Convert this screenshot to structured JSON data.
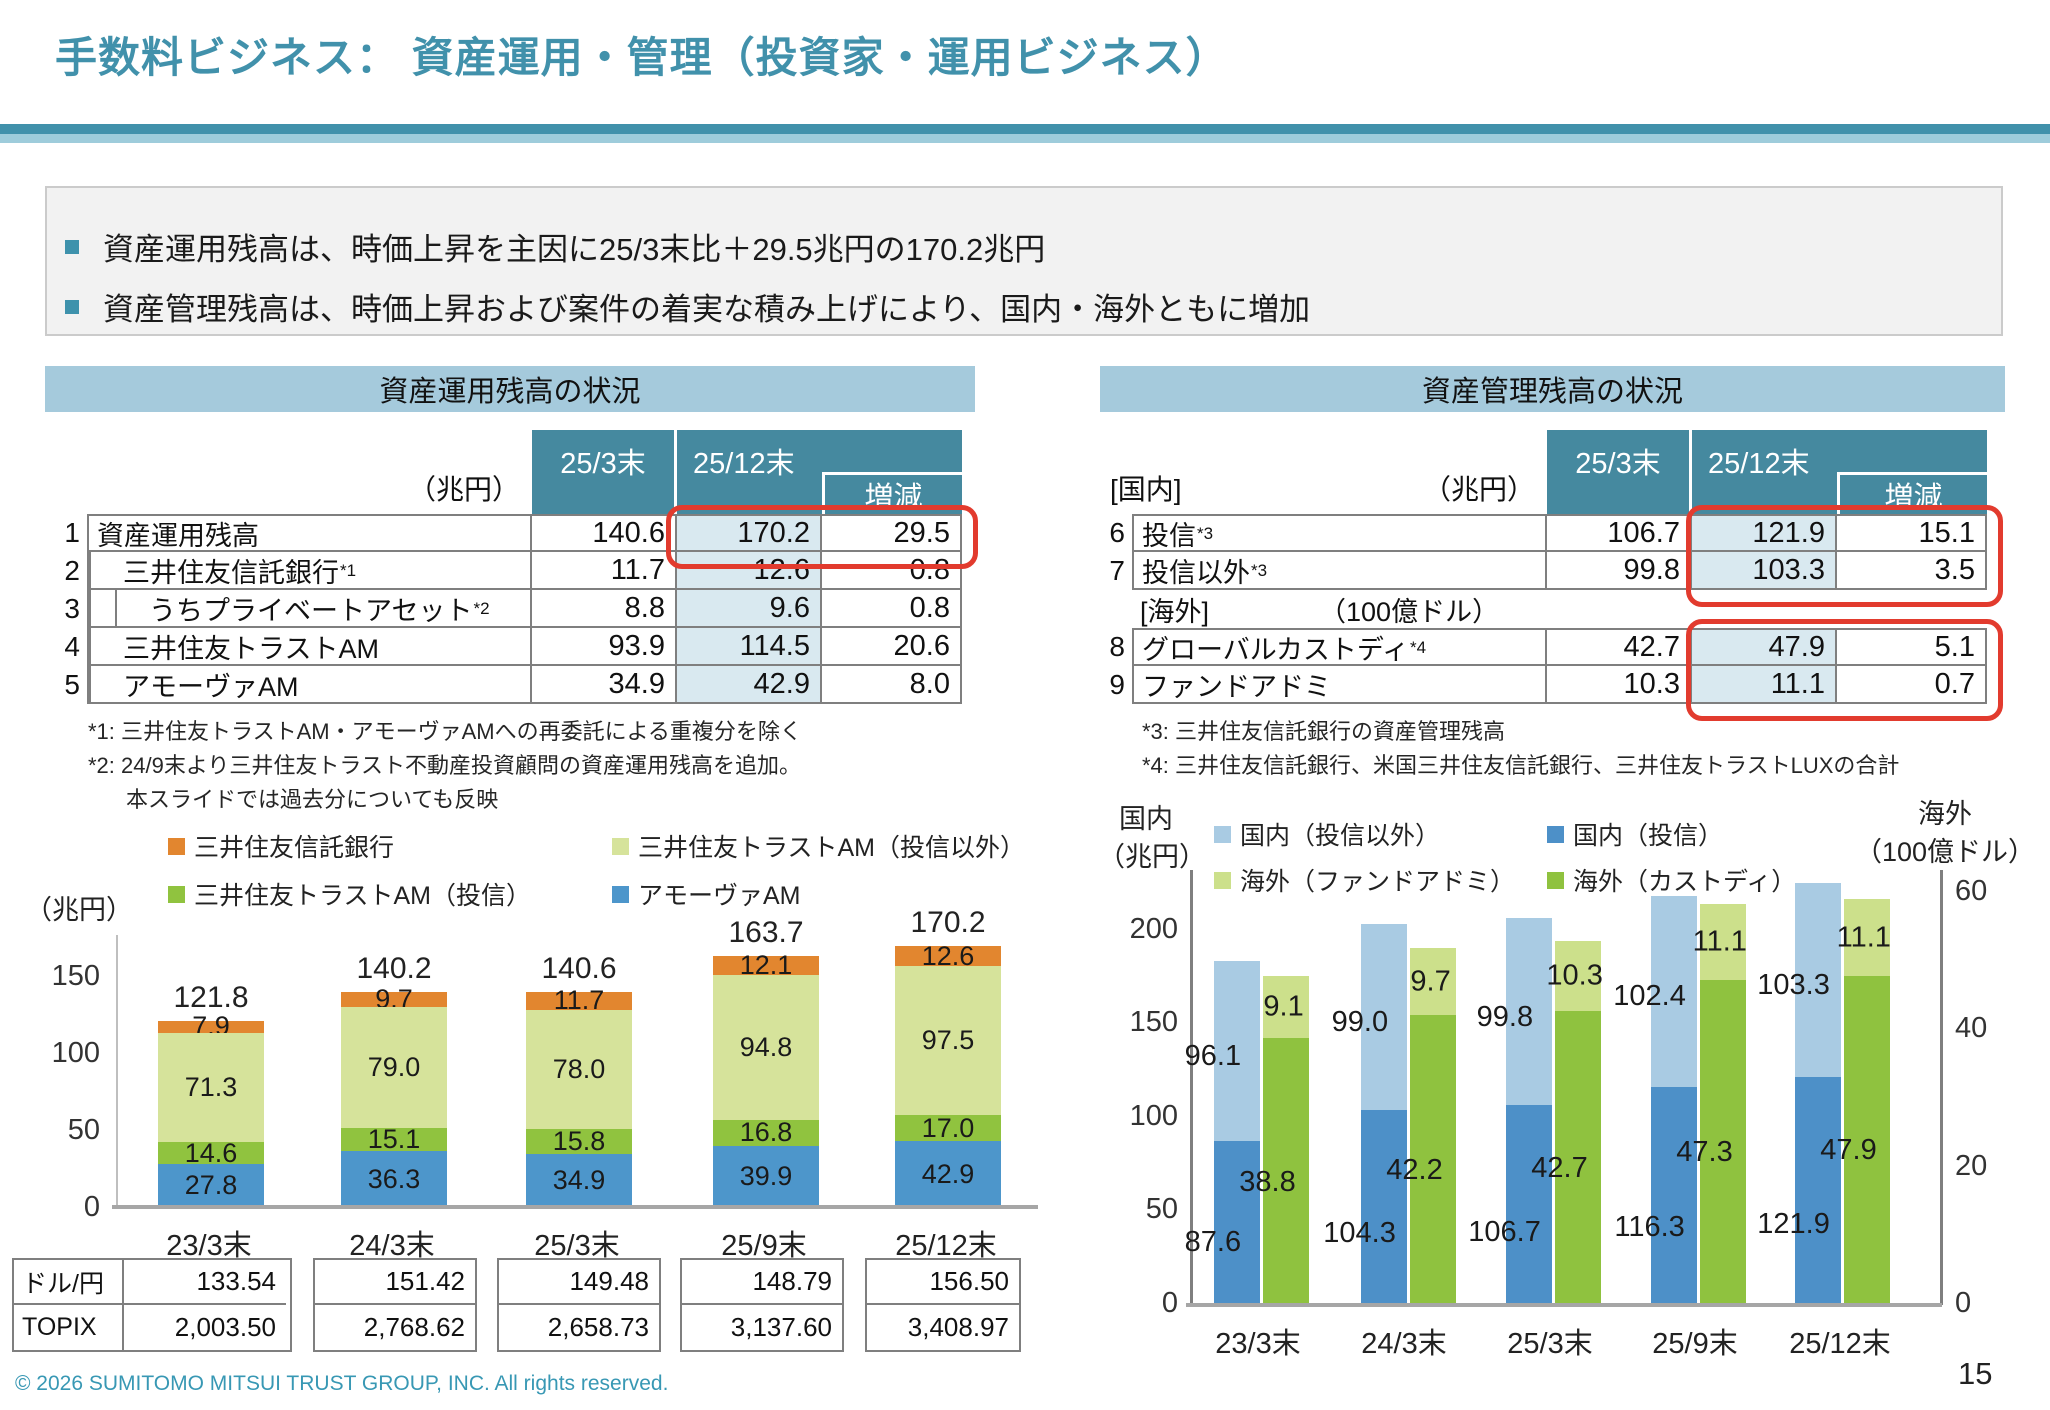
{
  "title": "手数料ビジネス： 資産運用・管理（投資家・運用ビジネス）",
  "bullets": [
    "資産運用残高は、時価上昇を主因に25/3末比＋29.5兆円の170.2兆円",
    "資産管理残高は、時価上昇および案件の着実な積み上げにより、国内・海外ともに増加"
  ],
  "colors": {
    "accent_teal": "#4191AB",
    "section_bar": "#A5CADC",
    "table_header": "#45899F",
    "highlight_cell": "#D9E9F0",
    "highlight_border": "#E23B2E",
    "bullet_square": "#3E92AC"
  },
  "left_panel": {
    "section_title": "資産運用残高の状況",
    "table": {
      "unit_label": "（兆円）",
      "h1": "25/3末",
      "h2": "25/12末",
      "h3": "増減",
      "rows": [
        {
          "num": "1",
          "label": "資産運用残高",
          "sup": "",
          "v1": "140.6",
          "v2": "170.2",
          "v3": "29.5"
        },
        {
          "num": "2",
          "label": "三井住友信託銀行",
          "sup": "*1",
          "v1": "11.7",
          "v2": "12.6",
          "v3": "0.8"
        },
        {
          "num": "3",
          "label": "うちプライベートアセット",
          "sup": "*2",
          "v1": "8.8",
          "v2": "9.6",
          "v3": "0.8"
        },
        {
          "num": "4",
          "label": "三井住友トラストAM",
          "sup": "",
          "v1": "93.9",
          "v2": "114.5",
          "v3": "20.6"
        },
        {
          "num": "5",
          "label": "アモーヴァAM",
          "sup": "",
          "v1": "34.9",
          "v2": "42.9",
          "v3": "8.0"
        }
      ]
    },
    "footnotes": [
      "*1: 三井住友トラストAM・アモーヴァAMへの再委託による重複分を除く",
      "*2: 24/9末より三井住友トラスト不動産投資顧問の資産運用残高を追加。",
      "本スライドでは過去分についても反映"
    ],
    "unit_axis": "（兆円）"
  },
  "right_panel": {
    "section_title": "資産管理残高の状況",
    "table": {
      "kokunai_label": "[国内]",
      "unit_label": "（兆円）",
      "h1": "25/3末",
      "h2": "25/12末",
      "h3": "増減",
      "rows_domestic": [
        {
          "num": "6",
          "label": "投信",
          "sup": "*3",
          "v1": "106.7",
          "v2": "121.9",
          "v3": "15.1"
        },
        {
          "num": "7",
          "label": "投信以外",
          "sup": "*3",
          "v1": "99.8",
          "v2": "103.3",
          "v3": "3.5"
        }
      ],
      "kaigai_label": "[海外]",
      "kaigai_unit": "（100億ドル）",
      "rows_overseas": [
        {
          "num": "8",
          "label": "グローバルカストディ",
          "sup": "*4",
          "v1": "42.7",
          "v2": "47.9",
          "v3": "5.1"
        },
        {
          "num": "9",
          "label": "ファンドアドミ",
          "sup": "",
          "v1": "10.3",
          "v2": "11.1",
          "v3": "0.7"
        }
      ]
    },
    "footnotes": [
      "*3: 三井住友信託銀行の資産管理残高",
      "*4: 三井住友信託銀行、米国三井住友信託銀行、三井住友トラストLUXの合計"
    ]
  },
  "chart_data": [
    {
      "type": "bar",
      "stacked": true,
      "title": "資産運用残高の状況",
      "ylabel": "（兆円）",
      "categories": [
        "23/3末",
        "24/3末",
        "25/3末",
        "25/9末",
        "25/12末"
      ],
      "series": [
        {
          "name": "アモーヴァAM",
          "color": "#4D96CB",
          "values": [
            "27.8",
            "36.3",
            "34.9",
            "39.9",
            "42.9"
          ]
        },
        {
          "name": "三井住友トラストAM（投信）",
          "color": "#90C33F",
          "values": [
            "14.6",
            "15.1",
            "15.8",
            "16.8",
            "17.0"
          ]
        },
        {
          "name": "三井住友トラストAM（投信以外）",
          "color": "#D6E39B",
          "values": [
            "71.3",
            "79.0",
            "78.0",
            "94.8",
            "97.5"
          ]
        },
        {
          "name": "三井住友信託銀行",
          "color": "#E2862F",
          "values": [
            "7.9",
            "9.7",
            "11.7",
            "12.1",
            "12.6"
          ]
        }
      ],
      "totals": [
        "121.8",
        "140.2",
        "140.6",
        "163.7",
        "170.2"
      ],
      "ylim": [
        0,
        177
      ],
      "yticks": [
        "0",
        "50",
        "100",
        "150"
      ],
      "legend_position": "top",
      "grid": false
    },
    {
      "type": "bar",
      "stacked": true,
      "grouped_pairs": true,
      "title": "資産管理残高の状況",
      "categories": [
        "23/3末",
        "24/3末",
        "25/3末",
        "25/9末",
        "25/12末"
      ],
      "left_axis": {
        "label": "国内",
        "unit": "（兆円）",
        "ticks": [
          "0",
          "50",
          "100",
          "150",
          "200"
        ],
        "ylim": [
          0,
          232
        ]
      },
      "right_axis": {
        "label": "海外",
        "unit": "（100億ドル）",
        "ticks": [
          "0",
          "20",
          "40",
          "60"
        ],
        "ylim": [
          0,
          63
        ]
      },
      "series": [
        {
          "name": "国内（投信）",
          "axis": "left",
          "color": "#4D90C8",
          "values": [
            "87.6",
            "104.3",
            "106.7",
            "116.3",
            "121.9"
          ]
        },
        {
          "name": "国内（投信以外）",
          "axis": "left",
          "color": "#A9CBE3",
          "values": [
            "96.1",
            "99.0",
            "99.8",
            "102.4",
            "103.3"
          ]
        },
        {
          "name": "海外（カストディ）",
          "axis": "right",
          "color": "#8FC23F",
          "values": [
            "38.8",
            "42.2",
            "42.7",
            "47.3",
            "47.9"
          ]
        },
        {
          "name": "海外（ファンドアドミ）",
          "axis": "right",
          "color": "#CCE08B",
          "values": [
            "9.1",
            "9.7",
            "10.3",
            "11.1",
            "11.1"
          ]
        }
      ],
      "grid": false,
      "legend_position": "top"
    }
  ],
  "rates": {
    "row1_label": "ドル/円",
    "row2_label": "TOPIX",
    "dollar_yen": [
      "133.54",
      "151.42",
      "149.48",
      "148.79",
      "156.50"
    ],
    "topix": [
      "2,003.50",
      "2,768.62",
      "2,658.73",
      "3,137.60",
      "3,408.97"
    ]
  },
  "footer": {
    "copyright": "© 2026 SUMITOMO MITSUI TRUST GROUP, INC. All rights reserved.",
    "page_number": "15"
  }
}
